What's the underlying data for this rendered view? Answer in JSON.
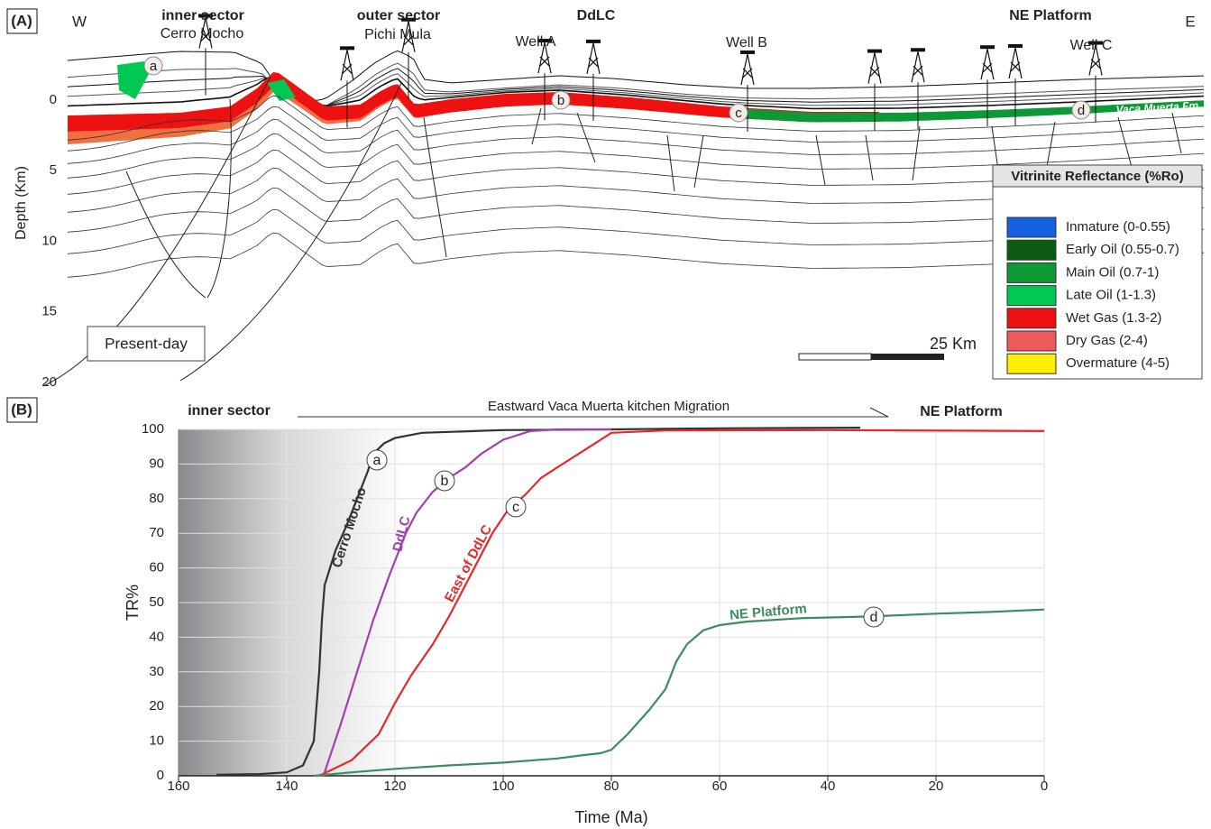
{
  "panel_a": {
    "label": "(A)",
    "west": "W",
    "east": "E",
    "regions": [
      "inner sector",
      "outer sector",
      "DdLC",
      "NE Platform"
    ],
    "localities": [
      "Cerro Mocho",
      "Pichi Mula"
    ],
    "wells": [
      "Well A",
      "Well B",
      "Well C"
    ],
    "formation": "Vaca Muerta Fm.",
    "markers": [
      "a",
      "b",
      "c",
      "d"
    ],
    "depth_axis": {
      "title": "Depth (Km)",
      "ticks": [
        0,
        5,
        10,
        15,
        20
      ]
    },
    "legend": {
      "title": "Vitrinite Reflectance (%Ro)",
      "items": [
        {
          "label": "Inmature (0-0.55)",
          "color": "#1560e0"
        },
        {
          "label": "Early Oil (0.55-0.7)",
          "color": "#0a5c12"
        },
        {
          "label": "Main Oil (0.7-1)",
          "color": "#0d9a36"
        },
        {
          "label": "Late Oil  (1-1.3)",
          "color": "#00c853"
        },
        {
          "label": "Wet Gas (1.3-2)",
          "color": "#ee1111"
        },
        {
          "label": "Dry Gas (2-4)",
          "color": "#ee5a5a"
        },
        {
          "label": "Overmature (4-5)",
          "color": "#ffee00"
        }
      ]
    },
    "stage": "Present-day",
    "scale_bar": "25 Km"
  },
  "chart_data": {
    "type": "line",
    "panel_label": "(B)",
    "annotations": [
      "inner sector",
      "NE Platform",
      "Eastward Vaca Muerta kitchen Migration"
    ],
    "x_label": "Time (Ma)",
    "y_label": "TR%",
    "xlim": [
      160,
      0
    ],
    "ylim": [
      0,
      100
    ],
    "xticks": [
      160,
      140,
      120,
      100,
      80,
      60,
      40,
      20,
      0
    ],
    "yticks": [
      0,
      10,
      20,
      30,
      40,
      50,
      60,
      70,
      80,
      90,
      100
    ],
    "grid": true,
    "series": [
      {
        "name": "Cerro Mocho",
        "color": "#333333",
        "marker": "a",
        "x": [
          153,
          145,
          140,
          137,
          135,
          134.5,
          134,
          133.5,
          133,
          131,
          129,
          127,
          125,
          124,
          122,
          120,
          115,
          100,
          80,
          60,
          34
        ],
        "values": [
          0.3,
          0.5,
          1,
          3,
          10,
          20,
          30,
          45,
          55,
          65,
          72,
          80,
          88,
          93,
          96,
          97.5,
          99,
          99.8,
          100,
          100.3,
          100.5
        ]
      },
      {
        "name": "DdLC",
        "color": "#a43fb0",
        "marker": "b",
        "x": [
          133,
          130,
          127,
          124,
          121,
          118,
          116,
          113,
          110,
          107,
          104,
          100,
          95,
          90,
          80
        ],
        "values": [
          1,
          15,
          30,
          45,
          58,
          70,
          76,
          82,
          86,
          89,
          93,
          97,
          99.5,
          100,
          100
        ]
      },
      {
        "name": "East of DdLC",
        "color": "#e32a2a",
        "marker": "c",
        "x": [
          134,
          128,
          123,
          120,
          117,
          113,
          110,
          106,
          102,
          99,
          96,
          93,
          90,
          86,
          83,
          80,
          70,
          40,
          0
        ],
        "values": [
          0,
          4.5,
          12,
          21,
          29,
          38,
          46,
          58,
          70,
          77,
          81,
          86,
          89,
          93,
          96,
          99,
          99.7,
          99.8,
          99.5
        ]
      },
      {
        "name": "NE Platform",
        "color": "#3d8c5c",
        "marker": "d",
        "x": [
          135,
          128,
          120,
          110,
          100,
          90,
          85,
          82,
          80,
          77,
          73,
          70,
          68,
          66,
          63,
          60,
          55,
          45,
          32,
          20,
          10,
          0
        ],
        "values": [
          0,
          1,
          2,
          3,
          3.8,
          5,
          6,
          6.5,
          7.5,
          12,
          19,
          25,
          33,
          38,
          42,
          43.5,
          44.5,
          45.5,
          46,
          46.8,
          47.3,
          48
        ]
      }
    ]
  }
}
